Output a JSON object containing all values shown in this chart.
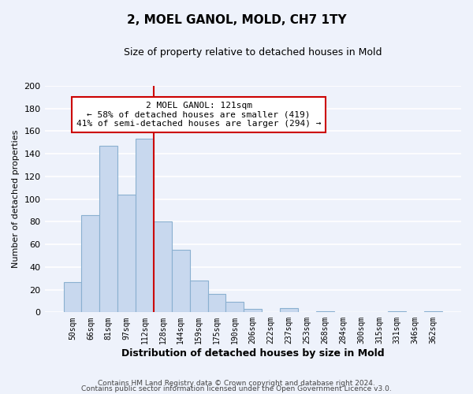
{
  "title": "2, MOEL GANOL, MOLD, CH7 1TY",
  "subtitle": "Size of property relative to detached houses in Mold",
  "xlabel": "Distribution of detached houses by size in Mold",
  "ylabel": "Number of detached properties",
  "bar_values": [
    27,
    86,
    147,
    104,
    153,
    80,
    55,
    28,
    16,
    9,
    3,
    0,
    4,
    0,
    1,
    0,
    0,
    0,
    1,
    0,
    1
  ],
  "bar_labels": [
    "50sqm",
    "66sqm",
    "81sqm",
    "97sqm",
    "112sqm",
    "128sqm",
    "144sqm",
    "159sqm",
    "175sqm",
    "190sqm",
    "206sqm",
    "222sqm",
    "237sqm",
    "253sqm",
    "268sqm",
    "284sqm",
    "300sqm",
    "315sqm",
    "331sqm",
    "346sqm",
    "362sqm"
  ],
  "bar_color": "#c8d8ee",
  "bar_edge_color": "#8ab0d0",
  "vline_x": 4.5,
  "vline_color": "#cc0000",
  "annotation_title": "2 MOEL GANOL: 121sqm",
  "annotation_line1": "← 58% of detached houses are smaller (419)",
  "annotation_line2": "41% of semi-detached houses are larger (294) →",
  "annotation_box_color": "#ffffff",
  "annotation_box_edge": "#cc0000",
  "ylim": [
    0,
    200
  ],
  "yticks": [
    0,
    20,
    40,
    60,
    80,
    100,
    120,
    140,
    160,
    180,
    200
  ],
  "footer1": "Contains HM Land Registry data © Crown copyright and database right 2024.",
  "footer2": "Contains public sector information licensed under the Open Government Licence v3.0.",
  "background_color": "#eef2fb",
  "grid_color": "#ffffff"
}
